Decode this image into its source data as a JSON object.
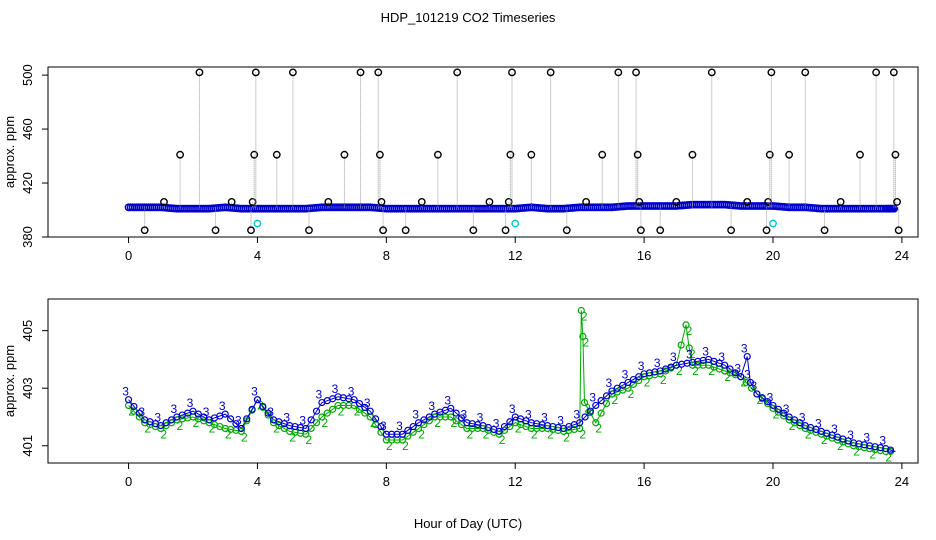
{
  "chart_data": [
    {
      "type": "scatter",
      "title": "HDP_101219  CO2 Timeseries",
      "xlabel": "",
      "ylabel": "approx. ppm",
      "xlim": [
        -2.5,
        24.5
      ],
      "ylim": [
        380,
        506
      ],
      "xticks": [
        0,
        4,
        8,
        12,
        16,
        20,
        24
      ],
      "yticks": [
        380,
        420,
        460,
        500
      ],
      "grid": false,
      "legend": "none",
      "baseline": {
        "color": "#0000cc",
        "x": [
          0,
          0.5,
          1,
          1.5,
          2,
          2.5,
          3,
          3.5,
          4,
          4.5,
          5,
          5.5,
          6,
          6.5,
          7,
          7.5,
          8,
          8.5,
          9,
          9.5,
          10,
          10.5,
          11,
          11.5,
          12,
          12.5,
          13,
          13.5,
          14,
          14.5,
          15,
          15.5,
          16,
          16.5,
          17,
          17.5,
          18,
          18.5,
          19,
          19.5,
          20,
          20.5,
          21,
          21.5,
          22,
          22.5,
          23,
          23.5,
          23.8
        ],
        "y": [
          402,
          402,
          402,
          401,
          401,
          401,
          402,
          401,
          401,
          401,
          401,
          401,
          402,
          402,
          402,
          402,
          401,
          401,
          401,
          401,
          401,
          401,
          401,
          401,
          401,
          402,
          401,
          401,
          402,
          402,
          402,
          403,
          403,
          403,
          403,
          404,
          404,
          404,
          403,
          403,
          403,
          402,
          402,
          401,
          401,
          401,
          401,
          401,
          401
        ]
      },
      "outliers": {
        "color": "#000000",
        "x": [
          0.5,
          1.1,
          1.6,
          2.2,
          2.7,
          3.2,
          3.8,
          3.85,
          3.9,
          3.95,
          4.6,
          5.1,
          5.6,
          6.2,
          6.7,
          7.2,
          7.75,
          7.8,
          7.85,
          7.9,
          8.6,
          9.1,
          9.6,
          10.2,
          10.7,
          11.2,
          11.7,
          11.8,
          11.85,
          11.9,
          12.5,
          13.1,
          13.6,
          14.2,
          14.7,
          15.2,
          15.75,
          15.8,
          15.85,
          15.9,
          16.5,
          17.0,
          17.5,
          18.1,
          18.7,
          19.2,
          19.8,
          19.85,
          19.9,
          19.95,
          20.5,
          21.0,
          21.6,
          22.1,
          22.7,
          23.2,
          23.75,
          23.8,
          23.85,
          23.9
        ],
        "y": [
          385,
          406,
          441,
          502,
          385,
          406,
          385,
          406,
          441,
          502,
          441,
          502,
          385,
          406,
          441,
          502,
          502,
          441,
          406,
          385,
          385,
          406,
          441,
          502,
          385,
          406,
          385,
          406,
          441,
          502,
          441,
          502,
          385,
          406,
          441,
          502,
          502,
          441,
          406,
          385,
          385,
          406,
          441,
          502,
          385,
          406,
          385,
          406,
          441,
          502,
          441,
          502,
          385,
          406,
          441,
          502,
          502,
          441,
          406,
          385
        ]
      },
      "cal_points": {
        "color": "#00cccc",
        "x": [
          4.0,
          12.0,
          20.0
        ],
        "y": [
          390,
          390,
          390
        ]
      }
    },
    {
      "type": "line",
      "title": "",
      "xlabel": "Hour of Day (UTC)",
      "ylabel": "approx. ppm",
      "xlim": [
        -2.5,
        24.5
      ],
      "ylim": [
        400.4,
        406.1
      ],
      "xticks": [
        0,
        4,
        8,
        12,
        16,
        20,
        24
      ],
      "yticks": [
        401,
        403,
        405
      ],
      "grid": false,
      "legend": "none",
      "series": [
        {
          "name": "2",
          "color": "#00aa00",
          "x": [
            0,
            0.5,
            1,
            1.5,
            2,
            2.5,
            3,
            3.5,
            4,
            4.5,
            5,
            5.5,
            6,
            6.5,
            7,
            7.5,
            8,
            8.5,
            9,
            9.5,
            10,
            10.5,
            11,
            11.5,
            12,
            12.5,
            13,
            13.5,
            14,
            14.05,
            14.1,
            14.15,
            14.5,
            15,
            15.5,
            16,
            16.5,
            17,
            17.3,
            17.4,
            17.5,
            18,
            18.5,
            19,
            19.5,
            20,
            20.5,
            21,
            21.5,
            22,
            22.5,
            23,
            23.5,
            23.8
          ],
          "y": [
            402.4,
            401.8,
            401.6,
            401.9,
            402.0,
            401.8,
            401.6,
            401.5,
            402.6,
            401.8,
            401.5,
            401.4,
            402.0,
            402.4,
            402.4,
            402.0,
            401.2,
            401.2,
            401.6,
            402.0,
            402.0,
            401.6,
            401.6,
            401.4,
            401.8,
            401.6,
            401.6,
            401.5,
            401.6,
            405.7,
            404.8,
            402.5,
            401.8,
            402.8,
            403.0,
            403.4,
            403.5,
            403.8,
            405.2,
            404.4,
            403.8,
            403.8,
            403.6,
            403.4,
            402.8,
            402.3,
            401.9,
            401.6,
            401.4,
            401.2,
            401.0,
            400.9,
            400.8,
            400.8
          ]
        },
        {
          "name": "3",
          "color": "#0000cc",
          "x": [
            0,
            0.5,
            1,
            1.5,
            2,
            2.5,
            3,
            3.5,
            4,
            4.5,
            5,
            5.5,
            6,
            6.5,
            7,
            7.5,
            8,
            8.5,
            9,
            9.5,
            10,
            10.5,
            11,
            11.5,
            12,
            12.5,
            13,
            13.5,
            14,
            14.5,
            15,
            15.5,
            16,
            16.5,
            17,
            17.5,
            18,
            18.5,
            19,
            19.2,
            19.3,
            19.5,
            20,
            20.5,
            21,
            21.5,
            22,
            22.5,
            23,
            23.5,
            23.8
          ],
          "y": [
            402.6,
            401.9,
            401.7,
            402.0,
            402.2,
            401.9,
            402.1,
            401.6,
            402.6,
            401.9,
            401.7,
            401.6,
            402.5,
            402.7,
            402.6,
            402.2,
            401.4,
            401.4,
            401.8,
            402.1,
            402.3,
            401.8,
            401.7,
            401.5,
            402.0,
            401.8,
            401.7,
            401.6,
            401.8,
            402.4,
            402.9,
            403.2,
            403.5,
            403.6,
            403.8,
            403.9,
            404.0,
            403.8,
            403.4,
            404.1,
            403.2,
            402.8,
            402.4,
            402.0,
            401.7,
            401.5,
            401.3,
            401.1,
            401.0,
            400.9,
            400.8
          ]
        }
      ]
    }
  ]
}
